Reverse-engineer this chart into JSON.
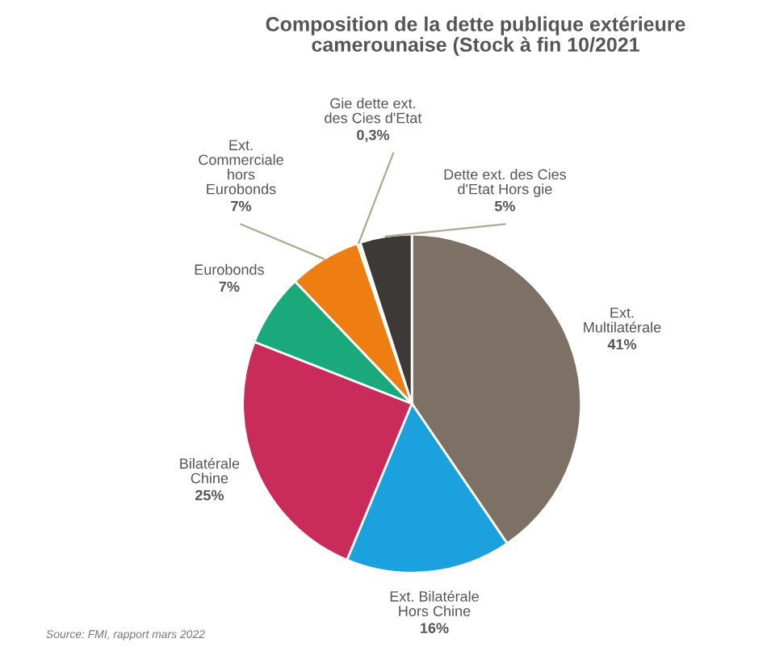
{
  "chart_data": {
    "type": "pie",
    "title": "Composition de la dette publique extérieure\ncamerounaise (Stock à fin 10/2021",
    "categories": [
      "Ext.\nMultilatérale",
      "Ext. Bilatérale\nHors Chine",
      "Bilatérale\nChine",
      "Eurobonds",
      "Ext.\nCommerciale\nhors\nEurobonds",
      "Gie dette ext.\ndes Cies d'Etat",
      "Dette ext. des Cies\nd'Etat Hors gie"
    ],
    "values": [
      41,
      16,
      25,
      7,
      7,
      0.3,
      5
    ],
    "value_labels": [
      "41%",
      "16%",
      "25%",
      "7%",
      "7%",
      "0,3%",
      "5%"
    ],
    "colors": [
      "#7d7166",
      "#1ba1dd",
      "#c92b5b",
      "#1aa97b",
      "#ef7e12",
      "#f2e6c8",
      "#3d3936"
    ],
    "annotations": [
      "Source: FMI, rapport mars 2022"
    ],
    "legend": false
  }
}
